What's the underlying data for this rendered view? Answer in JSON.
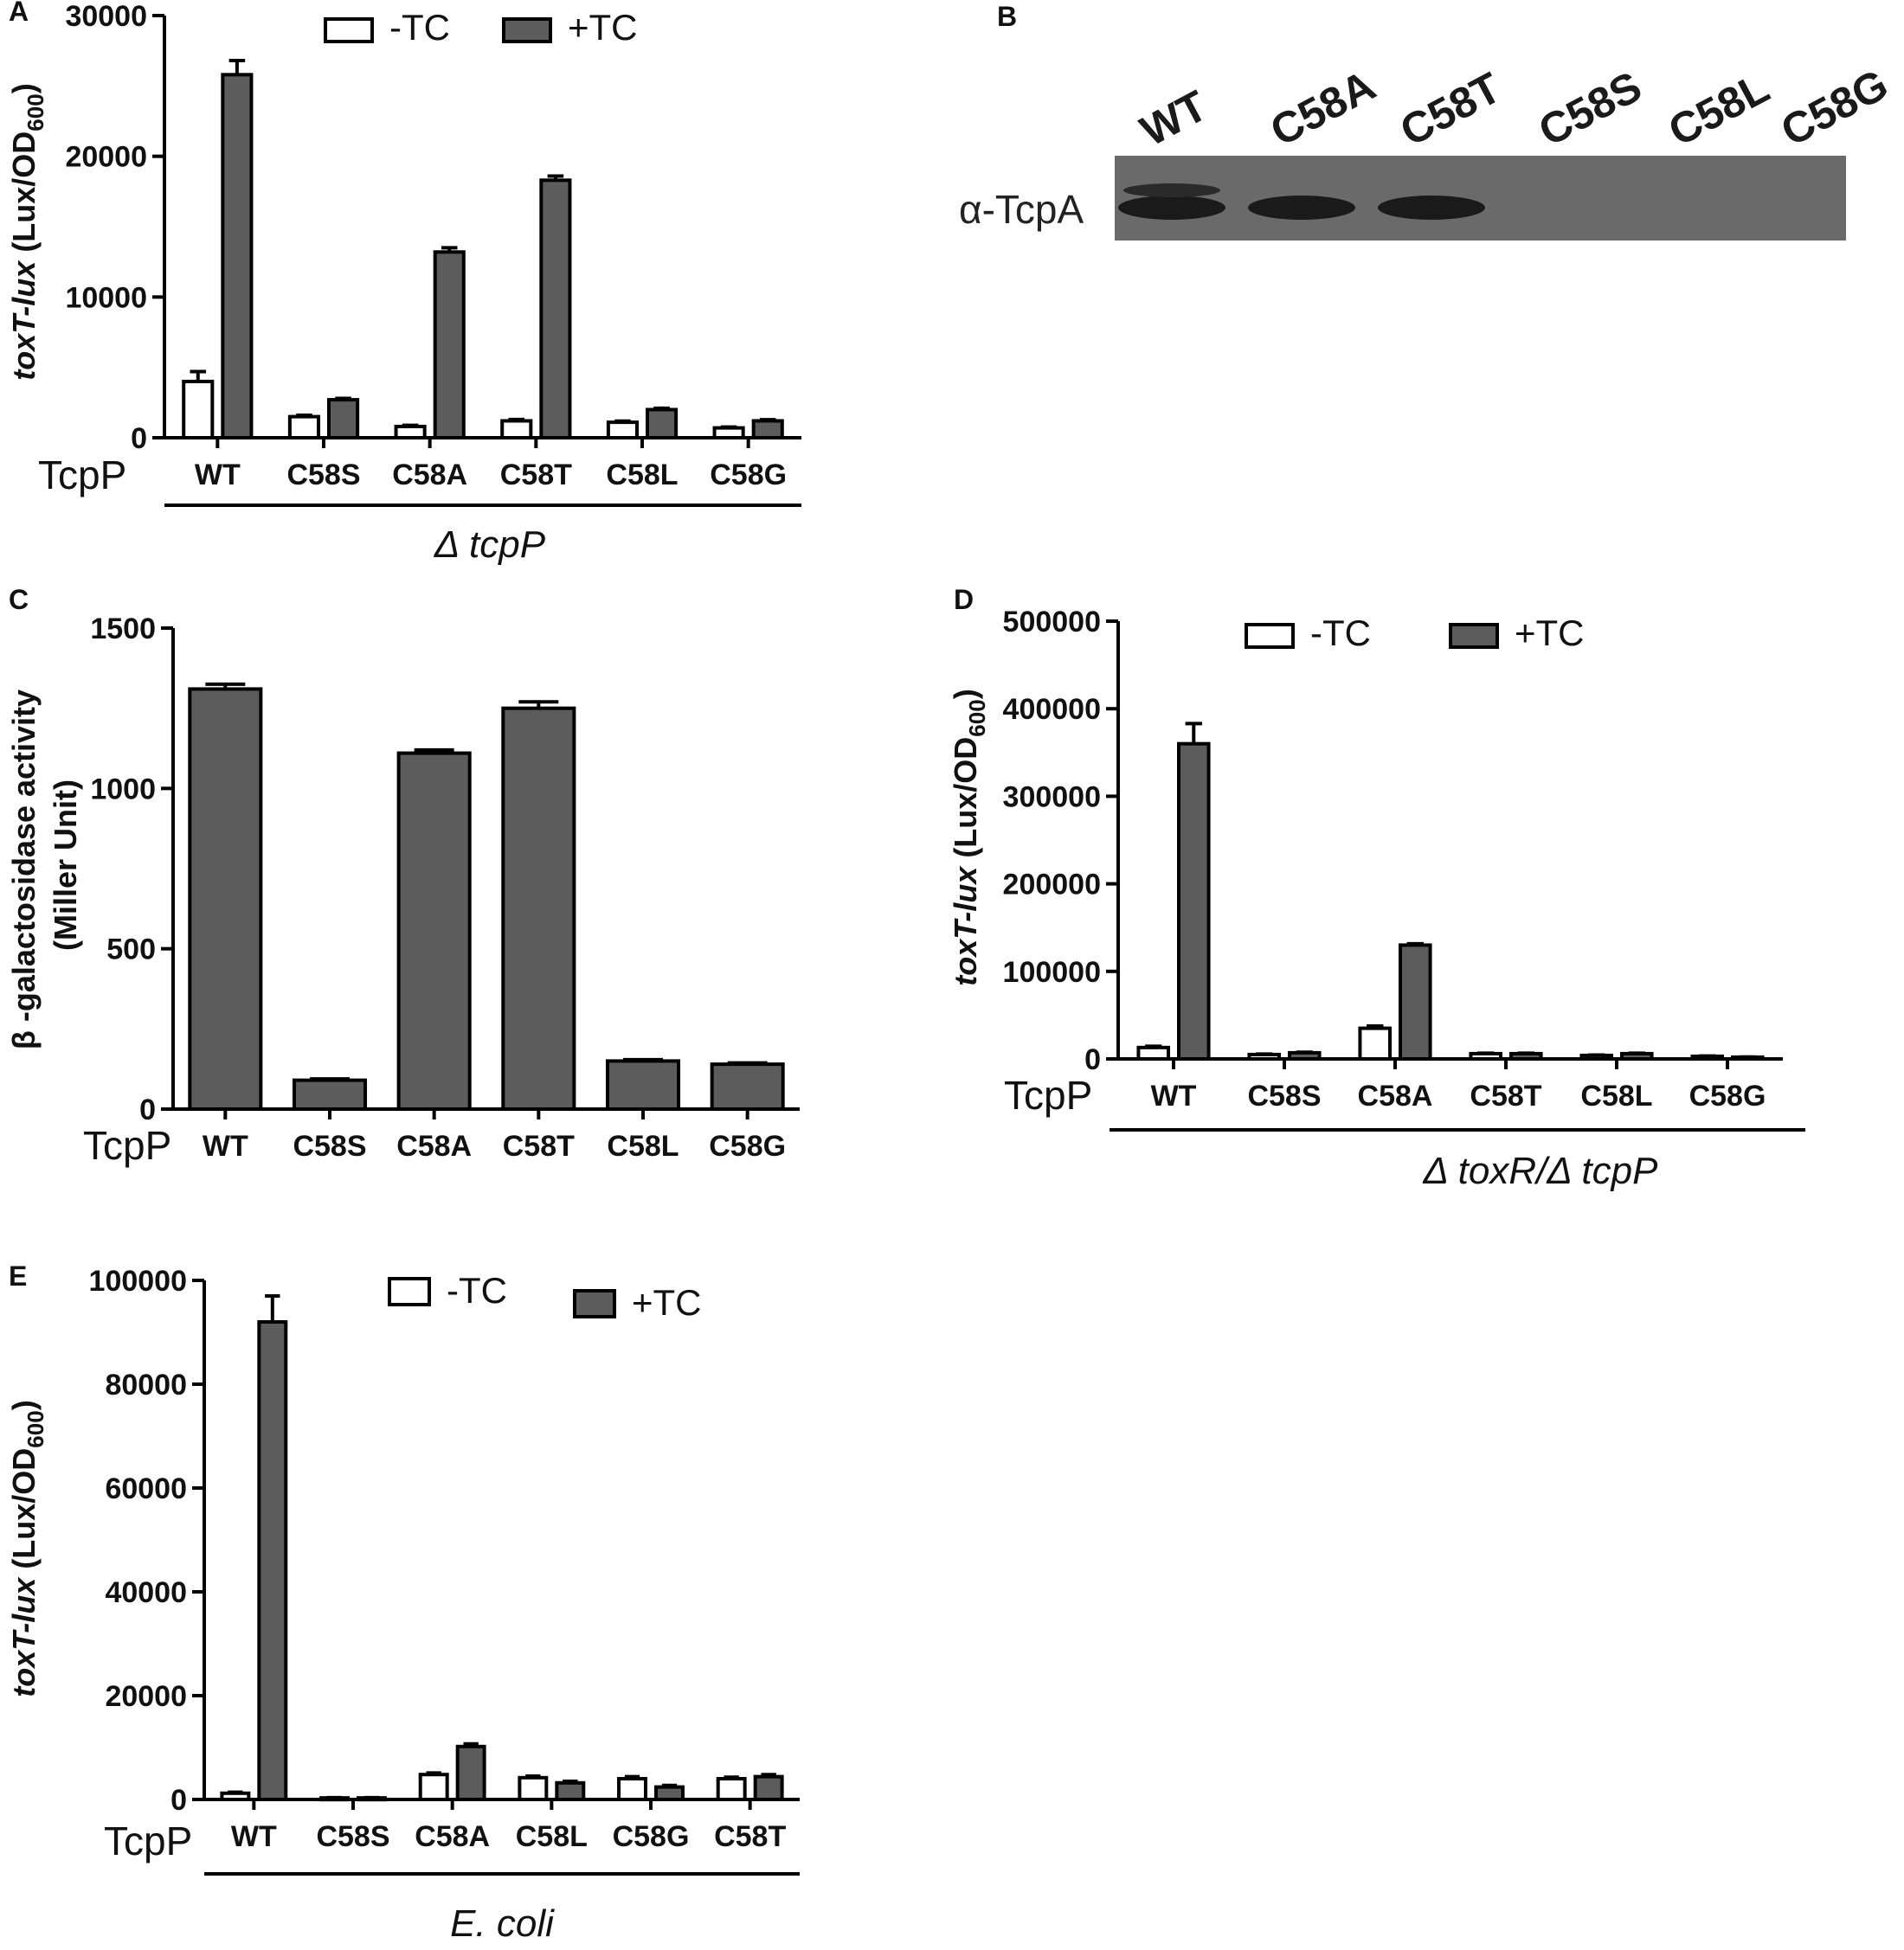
{
  "colors": {
    "open_bar": "#ffffff",
    "filled_bar": "#5c5c5c",
    "axis": "#000000",
    "blot_bg": "#6a6a6a",
    "blot_band": "#1a1a1a"
  },
  "panels": {
    "A": {
      "label": "A",
      "row_label": "TcpP",
      "group_label": "Δ tcpP",
      "ylabel_italic": "toxT-lux",
      "ylabel_rest": " (Lux/OD",
      "ylabel_sub": "600",
      "ylabel_close": ")"
    },
    "B": {
      "label": "B",
      "antibody_label": "α-TcpA",
      "lanes": [
        "WT",
        "C58A",
        "C58T",
        "C58S",
        "C58L",
        "C58G"
      ],
      "band_intensity": [
        1,
        1,
        1,
        0,
        0,
        0
      ]
    },
    "C": {
      "label": "C",
      "row_label": "TcpP",
      "ylabel_line1": "β -galactosidase activity",
      "ylabel_line2": "(Miller Unit)"
    },
    "D": {
      "label": "D",
      "row_label": "TcpP",
      "group_label": "Δ toxR/Δ tcpP",
      "ylabel_italic": "toxT-lux",
      "ylabel_rest": " (Lux/OD",
      "ylabel_sub": "600",
      "ylabel_close": ")"
    },
    "E": {
      "label": "E",
      "row_label": "TcpP",
      "group_label": "E. coli",
      "ylabel_italic": "toxT-lux",
      "ylabel_rest": " (Lux/OD",
      "ylabel_sub": "600",
      "ylabel_close": ")"
    }
  },
  "chart_data": [
    {
      "panel": "A",
      "type": "bar",
      "categories": [
        "WT",
        "C58S",
        "C58A",
        "C58T",
        "C58L",
        "C58G"
      ],
      "series": [
        {
          "name": "-TC",
          "values": [
            4000,
            1500,
            800,
            1200,
            1100,
            700
          ],
          "errors": [
            700,
            100,
            80,
            100,
            80,
            60
          ]
        },
        {
          "name": "+TC",
          "values": [
            25800,
            2700,
            13200,
            18300,
            2000,
            1200
          ],
          "errors": [
            1000,
            100,
            300,
            300,
            100,
            80
          ]
        }
      ],
      "ylim": [
        0,
        30000
      ],
      "yticks": [
        0,
        10000,
        20000,
        30000
      ]
    },
    {
      "panel": "C",
      "type": "bar",
      "categories": [
        "WT",
        "C58S",
        "C58A",
        "C58T",
        "C58L",
        "C58G"
      ],
      "series": [
        {
          "values": [
            1310,
            90,
            1110,
            1250,
            150,
            140
          ],
          "errors": [
            15,
            4,
            10,
            20,
            4,
            4
          ]
        }
      ],
      "ylim": [
        0,
        1500
      ],
      "yticks": [
        0,
        500,
        1000,
        1500
      ]
    },
    {
      "panel": "D",
      "type": "bar",
      "categories": [
        "WT",
        "C58S",
        "C58A",
        "C58T",
        "C58L",
        "C58G"
      ],
      "series": [
        {
          "name": "-TC",
          "values": [
            13000,
            5000,
            35000,
            6000,
            4000,
            3000
          ],
          "errors": [
            1500,
            500,
            2500,
            600,
            400,
            300
          ]
        },
        {
          "name": "+TC",
          "values": [
            360000,
            7000,
            130000,
            6000,
            6000,
            2000
          ],
          "errors": [
            23000,
            600,
            1500,
            500,
            500,
            200
          ]
        }
      ],
      "ylim": [
        0,
        500000
      ],
      "yticks": [
        0,
        100000,
        200000,
        300000,
        400000,
        500000
      ]
    },
    {
      "panel": "E",
      "type": "bar",
      "categories": [
        "WT",
        "C58S",
        "C58A",
        "C58L",
        "C58G",
        "C58T"
      ],
      "series": [
        {
          "name": "-TC",
          "values": [
            1200,
            300,
            4800,
            4200,
            4000,
            4000
          ],
          "errors": [
            200,
            50,
            300,
            300,
            400,
            300
          ]
        },
        {
          "name": "+TC",
          "values": [
            92000,
            300,
            10200,
            3200,
            2400,
            4400
          ],
          "errors": [
            5000,
            50,
            500,
            300,
            300,
            400
          ]
        }
      ],
      "ylim": [
        0,
        100000
      ],
      "yticks": [
        0,
        20000,
        40000,
        60000,
        80000,
        100000
      ]
    }
  ]
}
